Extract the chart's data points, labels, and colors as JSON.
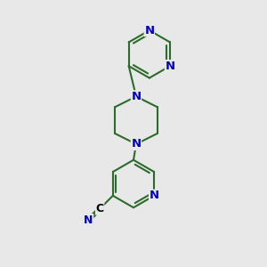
{
  "bg_color": "#e8e8e8",
  "bond_color": "#2d6b2d",
  "atom_color": "#0000cc",
  "line_width": 1.5,
  "font_size": 9.5,
  "figure_size": [
    3.0,
    3.0
  ],
  "dpi": 100,
  "xlim": [
    0,
    10
  ],
  "ylim": [
    0,
    10
  ]
}
